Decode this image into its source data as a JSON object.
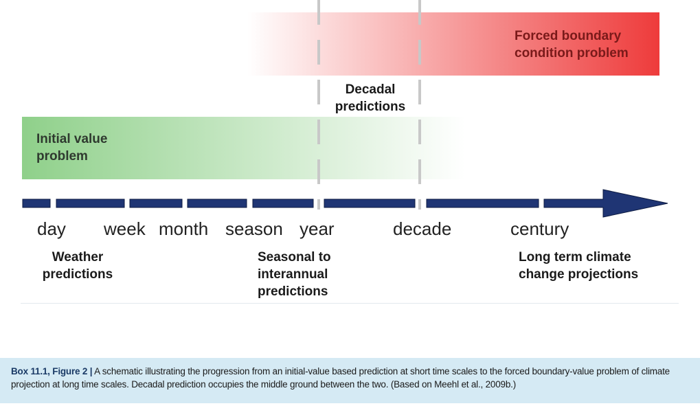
{
  "colors": {
    "forced_band": "#ee3b3b",
    "initial_band": "#8fd08a",
    "arrow_fill": "#1f3574",
    "divider": "#c8c8c8",
    "caption_bg": "#d5eaf4"
  },
  "diagram": {
    "forced_label": "Forced boundary\ncondition problem",
    "initial_label": "Initial value\nproblem",
    "decadal_label": "Decadal\npredictions",
    "timescales": [
      "day",
      "week",
      "month",
      "season",
      "year",
      "decade",
      "century"
    ],
    "weather_label": "Weather\npredictions",
    "seasonal_label": "Seasonal to\ninterannual\npredictions",
    "longterm_label": "Long term climate\nchange projections"
  },
  "caption": {
    "label": "Box 11.1, Figure 2 |",
    "text": " A schematic illustrating the progression from an initial-value based prediction at short time scales to the forced boundary-value problem of climate projection at long time scales. Decadal prediction occupies the middle ground between the two. (Based on Meehl et al., 2009b.)"
  }
}
